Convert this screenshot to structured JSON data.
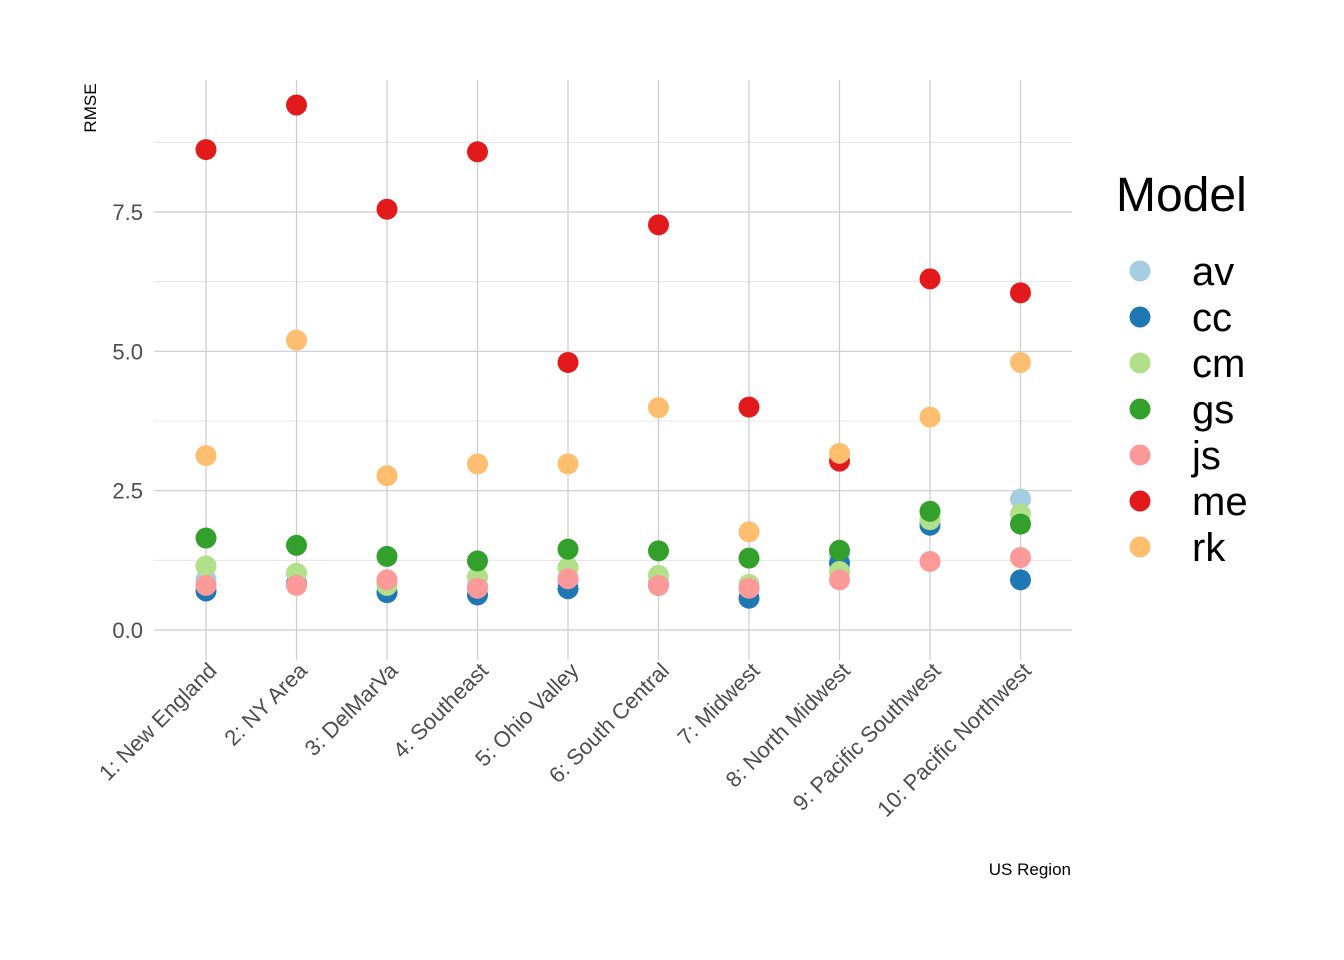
{
  "chart_data": {
    "type": "scatter",
    "title": "",
    "xlabel": "US Region",
    "ylabel": "RMSE",
    "categories": [
      "1: New England",
      "2: NY Area",
      "3: DelMarVa",
      "4: Southeast",
      "5: Ohio Valley",
      "6: South Central",
      "7: Midwest",
      "8: North Midwest",
      "9: Pacific Southwest",
      "10: Pacific Northwest"
    ],
    "ylim": [
      -0.5,
      9.9
    ],
    "yticks": [
      "0.0",
      "2.5",
      "5.0",
      "7.5"
    ],
    "ytick_values": [
      0,
      2.5,
      5,
      7.5
    ],
    "grid": true,
    "legend": {
      "title": "Model",
      "position": "right"
    },
    "series": [
      {
        "name": "av",
        "color": "#a6cee3",
        "values": [
          0.9,
          0.85,
          0.85,
          0.8,
          0.85,
          0.85,
          0.75,
          1.35,
          1.95,
          2.35
        ]
      },
      {
        "name": "cc",
        "color": "#1f78b4",
        "values": [
          0.7,
          0.82,
          0.67,
          0.63,
          0.74,
          0.8,
          0.57,
          1.2,
          1.88,
          0.9
        ]
      },
      {
        "name": "cm",
        "color": "#b2df8a",
        "values": [
          1.15,
          1.02,
          0.8,
          0.95,
          1.12,
          0.98,
          0.82,
          1.05,
          1.98,
          2.08
        ]
      },
      {
        "name": "gs",
        "color": "#33a02c",
        "values": [
          1.65,
          1.52,
          1.32,
          1.24,
          1.45,
          1.42,
          1.29,
          1.43,
          2.13,
          1.9
        ]
      },
      {
        "name": "js",
        "color": "#fb9a99",
        "values": [
          0.8,
          0.8,
          0.9,
          0.75,
          0.92,
          0.8,
          0.75,
          0.9,
          1.23,
          1.3
        ]
      },
      {
        "name": "me",
        "color": "#e31a1c",
        "values": [
          8.62,
          9.42,
          7.55,
          8.58,
          4.8,
          7.27,
          4.0,
          3.03,
          6.3,
          6.05
        ]
      },
      {
        "name": "rk",
        "color": "#fdbf6f",
        "values": [
          3.13,
          5.2,
          2.77,
          2.98,
          2.98,
          3.99,
          1.76,
          3.17,
          3.82,
          4.8
        ]
      }
    ]
  }
}
